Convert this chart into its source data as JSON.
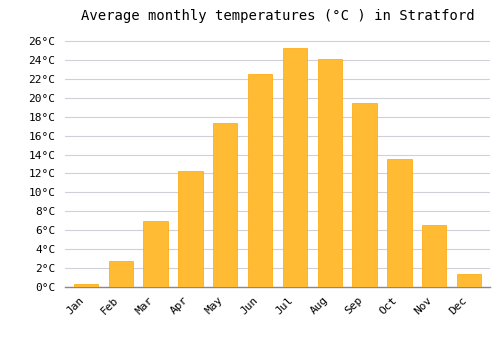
{
  "title": "Average monthly temperatures (°C ) in Stratford",
  "months": [
    "Jan",
    "Feb",
    "Mar",
    "Apr",
    "May",
    "Jun",
    "Jul",
    "Aug",
    "Sep",
    "Oct",
    "Nov",
    "Dec"
  ],
  "values": [
    0.3,
    2.7,
    7.0,
    12.3,
    17.3,
    22.5,
    25.3,
    24.1,
    19.4,
    13.5,
    6.5,
    1.4
  ],
  "bar_color": "#FFBB33",
  "bar_edge_color": "#FFA500",
  "background_color": "#ffffff",
  "grid_color": "#d0d0d8",
  "ylim": [
    0,
    27
  ],
  "yticks": [
    0,
    2,
    4,
    6,
    8,
    10,
    12,
    14,
    16,
    18,
    20,
    22,
    24,
    26
  ],
  "ytick_labels": [
    "0°C",
    "2°C",
    "4°C",
    "6°C",
    "8°C",
    "10°C",
    "12°C",
    "14°C",
    "16°C",
    "18°C",
    "20°C",
    "22°C",
    "24°C",
    "26°C"
  ],
  "title_fontsize": 10,
  "tick_fontsize": 8,
  "font_family": "monospace",
  "bar_width": 0.7
}
